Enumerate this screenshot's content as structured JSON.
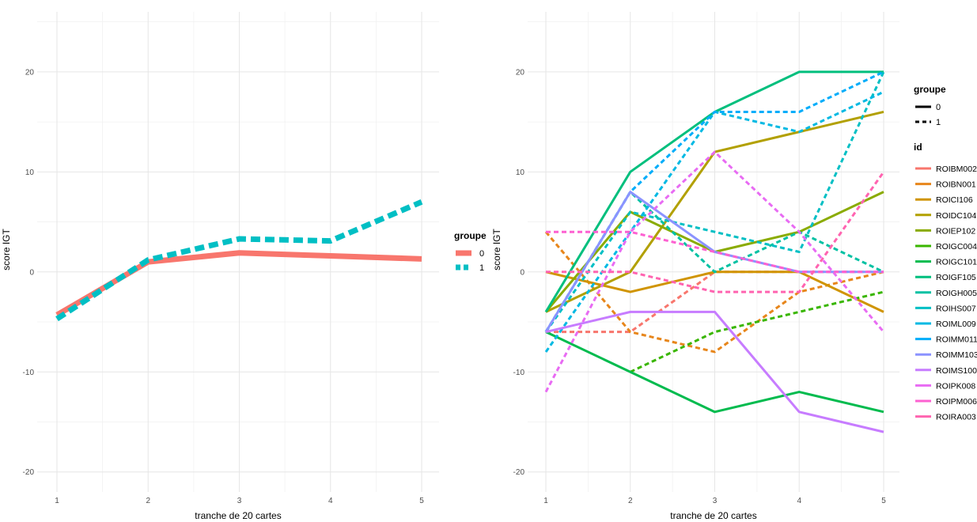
{
  "chart_data": [
    {
      "type": "line",
      "xlabel": "tranche de 20 cartes",
      "ylabel": "score IGT",
      "x": [
        1,
        2,
        3,
        4,
        5
      ],
      "ylim": [
        -22,
        26
      ],
      "yticks": [
        -20,
        -10,
        0,
        10,
        20
      ],
      "grid": true,
      "legend": {
        "placement": "right",
        "title": "groupe"
      },
      "series": [
        {
          "name": "0",
          "color": "#F8766D",
          "dash": "solid",
          "values": [
            -4.3,
            1.0,
            1.9,
            1.6,
            1.3
          ]
        },
        {
          "name": "1",
          "color": "#00BFC4",
          "dash": "dashed",
          "values": [
            -4.7,
            1.2,
            3.3,
            3.1,
            7.0
          ]
        }
      ]
    },
    {
      "type": "line",
      "xlabel": "tranche de 20 cartes",
      "ylabel": "score IGT",
      "x": [
        1,
        2,
        3,
        4,
        5
      ],
      "ylim": [
        -22,
        26
      ],
      "yticks": [
        -20,
        -10,
        0,
        10,
        20
      ],
      "grid": true,
      "legend_linetype": {
        "title": "groupe",
        "entries": [
          {
            "label": "0",
            "dash": "solid"
          },
          {
            "label": "1",
            "dash": "dashed"
          }
        ]
      },
      "legend_color": {
        "title": "id",
        "placement": "right"
      },
      "series": [
        {
          "name": "ROIBM002",
          "color": "#F8766D",
          "dash": "dashed",
          "values": [
            -6,
            -6,
            0,
            0,
            0
          ]
        },
        {
          "name": "ROIBN001",
          "color": "#E7861B",
          "dash": "dashed",
          "values": [
            4,
            -6,
            -8,
            -2,
            0
          ]
        },
        {
          "name": "ROICI106",
          "color": "#D09400",
          "dash": "solid",
          "values": [
            0,
            -2,
            0,
            0,
            -4
          ]
        },
        {
          "name": "ROIDC104",
          "color": "#B2A000",
          "dash": "solid",
          "values": [
            -4,
            0,
            12,
            14,
            16
          ]
        },
        {
          "name": "ROIEP102",
          "color": "#8AAB00",
          "dash": "solid",
          "values": [
            -4,
            6,
            2,
            4,
            8
          ]
        },
        {
          "name": "ROIGC004",
          "color": "#39B600",
          "dash": "dashed",
          "values": [
            null,
            -10,
            -6,
            -4,
            -2
          ]
        },
        {
          "name": "ROIGC101",
          "color": "#00BB4E",
          "dash": "solid",
          "values": [
            -6,
            -10,
            -14,
            -12,
            -14
          ]
        },
        {
          "name": "ROIGF105",
          "color": "#00BF7D",
          "dash": "solid",
          "values": [
            -4,
            10,
            16,
            20,
            20
          ]
        },
        {
          "name": "ROIGH005",
          "color": "#00C1A3",
          "dash": "dashed",
          "values": [
            -6,
            8,
            0,
            4,
            0
          ]
        },
        {
          "name": "ROIHS007",
          "color": "#00BFC4",
          "dash": "dashed",
          "values": [
            -6,
            6,
            4,
            2,
            20
          ]
        },
        {
          "name": "ROIML009",
          "color": "#00B9E3",
          "dash": "dashed",
          "values": [
            -8,
            4,
            16,
            14,
            18
          ]
        },
        {
          "name": "ROIMM011",
          "color": "#00ADFA",
          "dash": "dashed",
          "values": [
            -6,
            8,
            16,
            16,
            20
          ]
        },
        {
          "name": "ROIMM103",
          "color": "#8B93FF",
          "dash": "solid",
          "values": [
            -6,
            8,
            2,
            0,
            0
          ]
        },
        {
          "name": "ROIMS100",
          "color": "#C77CFF",
          "dash": "solid",
          "values": [
            -6,
            -4,
            -4,
            -14,
            -16
          ]
        },
        {
          "name": "ROIPK008",
          "color": "#E86BF3",
          "dash": "dashed",
          "values": [
            -12,
            4,
            12,
            4,
            -6
          ]
        },
        {
          "name": "ROIPM006",
          "color": "#FD61D1",
          "dash": "dashed",
          "values": [
            4,
            4,
            2,
            0,
            0
          ]
        },
        {
          "name": "ROIRA003",
          "color": "#FF64B0",
          "dash": "dashed",
          "values": [
            0,
            0,
            -2,
            -2,
            10
          ]
        }
      ]
    }
  ]
}
